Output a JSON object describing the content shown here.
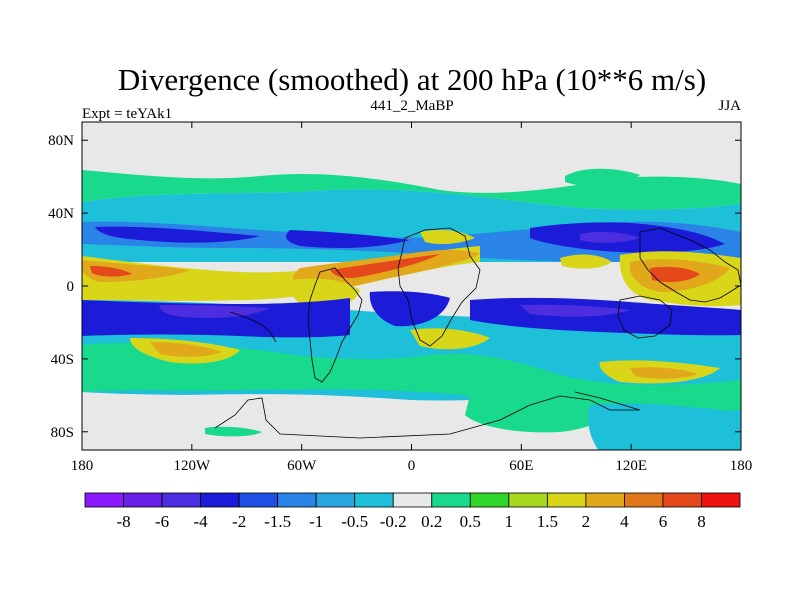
{
  "chart_data": {
    "type": "contour-map",
    "title": "Divergence (smoothed) at 200 hPa (10**6 m/s)",
    "subtitle_left": "Expt = teYAk1",
    "subtitle_center": "441_2_MaBP",
    "subtitle_right": "JJA",
    "lon_range": [
      -180,
      180
    ],
    "lat_range": [
      -90,
      90
    ],
    "x_ticks": [
      {
        "value": -180,
        "label": "180"
      },
      {
        "value": -120,
        "label": "120W"
      },
      {
        "value": -60,
        "label": "60W"
      },
      {
        "value": 0,
        "label": "0"
      },
      {
        "value": 60,
        "label": "60E"
      },
      {
        "value": 120,
        "label": "120E"
      },
      {
        "value": 180,
        "label": "180"
      }
    ],
    "y_ticks": [
      {
        "value": 80,
        "label": "80N"
      },
      {
        "value": 40,
        "label": "40N"
      },
      {
        "value": 0,
        "label": "0"
      },
      {
        "value": -40,
        "label": "40S"
      },
      {
        "value": -80,
        "label": "80S"
      }
    ],
    "colorbar": {
      "levels": [
        "-8",
        "-6",
        "-4",
        "-2",
        "-1.5",
        "-1",
        "-0.5",
        "-0.2",
        "0.2",
        "0.5",
        "1",
        "1.5",
        "2",
        "4",
        "6",
        "8"
      ],
      "colors": [
        "#8c1aff",
        "#6a1fe6",
        "#4d2de0",
        "#1c1cd8",
        "#1e50e6",
        "#2a83e6",
        "#2aa6df",
        "#1ebfd9",
        "#e8e8e8",
        "#19d98c",
        "#31d62a",
        "#a8d91c",
        "#d9d61a",
        "#e0a81a",
        "#e0781a",
        "#e5481a",
        "#ee1111"
      ]
    },
    "regions": [
      {
        "name": "tropical-divergence-belt-atlantic",
        "level": "2",
        "lon": -40,
        "lat": 12
      },
      {
        "name": "tropical-divergence-belt-east-pacific",
        "level": "2",
        "lon": -165,
        "lat": 8
      },
      {
        "name": "convergence-band-west-pacific",
        "level": "-2",
        "lon": 110,
        "lat": 22
      },
      {
        "name": "convergence-band-south-pacific",
        "level": "-2",
        "lon": -120,
        "lat": -25
      },
      {
        "name": "divergence-maritime-continent",
        "level": "4",
        "lon": 145,
        "lat": 2
      }
    ]
  }
}
